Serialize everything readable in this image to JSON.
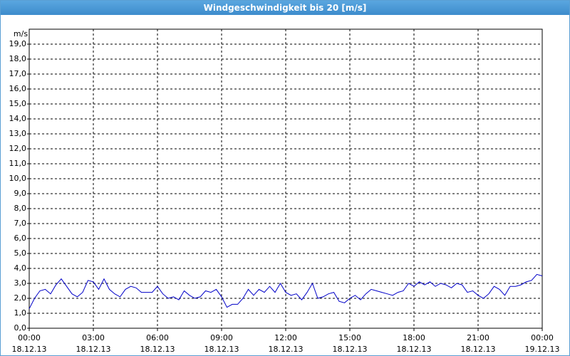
{
  "chart_data": {
    "type": "line",
    "title": "Windgeschwindigkeit bis 20 [m/s]",
    "y_label": "m/s",
    "x": [
      0,
      0.25,
      0.5,
      0.75,
      1,
      1.25,
      1.5,
      1.75,
      2,
      2.25,
      2.5,
      2.75,
      3,
      3.25,
      3.5,
      3.75,
      4,
      4.25,
      4.5,
      4.75,
      5,
      5.25,
      5.5,
      5.75,
      6,
      6.25,
      6.5,
      6.75,
      7,
      7.25,
      7.5,
      7.75,
      8,
      8.25,
      8.5,
      8.75,
      9,
      9.25,
      9.5,
      9.75,
      10,
      10.25,
      10.5,
      10.75,
      11,
      11.25,
      11.5,
      11.75,
      12,
      12.25,
      12.5,
      12.75,
      13,
      13.25,
      13.5,
      13.75,
      14,
      14.25,
      14.5,
      14.75,
      15,
      15.25,
      15.5,
      15.75,
      16,
      16.25,
      16.5,
      16.75,
      17,
      17.25,
      17.5,
      17.75,
      18,
      18.25,
      18.5,
      18.75,
      19,
      19.25,
      19.5,
      19.75,
      20,
      20.25,
      20.5,
      20.75,
      21,
      21.25,
      21.5,
      21.75,
      22,
      22.25,
      22.5,
      22.75,
      23,
      23.25,
      23.5,
      23.75,
      24
    ],
    "series": [
      {
        "name": "m/s",
        "color": "#0000c8",
        "values": [
          1.3,
          2.0,
          2.5,
          2.6,
          2.3,
          2.9,
          3.3,
          2.8,
          2.3,
          2.1,
          2.4,
          3.2,
          3.1,
          2.6,
          3.3,
          2.6,
          2.3,
          2.1,
          2.6,
          2.8,
          2.7,
          2.4,
          2.4,
          2.4,
          2.8,
          2.3,
          2.0,
          2.1,
          1.9,
          2.5,
          2.2,
          2.0,
          2.1,
          2.5,
          2.4,
          2.6,
          2.1,
          1.4,
          1.6,
          1.6,
          2.0,
          2.6,
          2.2,
          2.6,
          2.4,
          2.8,
          2.4,
          3.0,
          2.4,
          2.2,
          2.3,
          1.9,
          2.4,
          3.0,
          2.0,
          2.1,
          2.3,
          2.4,
          1.8,
          1.7,
          2.0,
          2.2,
          1.9,
          2.3,
          2.6,
          2.5,
          2.4,
          2.3,
          2.2,
          2.4,
          2.5,
          3.0,
          2.8,
          3.1,
          2.9,
          3.1,
          2.8,
          3.0,
          2.9,
          2.7,
          3.0,
          2.9,
          2.4,
          2.5,
          2.2,
          2.0,
          2.3,
          2.8,
          2.6,
          2.2,
          2.8,
          2.8,
          2.9,
          3.1,
          3.2,
          3.6,
          3.5
        ]
      }
    ],
    "xlim": [
      0,
      24
    ],
    "xticks": [
      {
        "value": 0,
        "label": "00:00\n18.12.13"
      },
      {
        "value": 3,
        "label": "03:00\n18.12.13"
      },
      {
        "value": 6,
        "label": "06:00\n18.12.13"
      },
      {
        "value": 9,
        "label": "09:00\n18.12.13"
      },
      {
        "value": 12,
        "label": "12:00\n18.12.13"
      },
      {
        "value": 15,
        "label": "15:00\n18.12.13"
      },
      {
        "value": 18,
        "label": "18:00\n18.12.13"
      },
      {
        "value": 21,
        "label": "21:00\n18.12.13"
      },
      {
        "value": 24,
        "label": "00:00\n19.12.13"
      }
    ],
    "ylim": [
      0,
      20
    ],
    "yticks": [
      {
        "value": 0,
        "label": "0,0"
      },
      {
        "value": 1,
        "label": "1,0"
      },
      {
        "value": 2,
        "label": "2,0"
      },
      {
        "value": 3,
        "label": "3,0"
      },
      {
        "value": 4,
        "label": "4,0"
      },
      {
        "value": 5,
        "label": "5,0"
      },
      {
        "value": 6,
        "label": "6,0"
      },
      {
        "value": 7,
        "label": "7,0"
      },
      {
        "value": 8,
        "label": "8,0"
      },
      {
        "value": 9,
        "label": "9,0"
      },
      {
        "value": 10,
        "label": "10,0"
      },
      {
        "value": 11,
        "label": "11,0"
      },
      {
        "value": 12,
        "label": "12,0"
      },
      {
        "value": 13,
        "label": "13,0"
      },
      {
        "value": 14,
        "label": "14,0"
      },
      {
        "value": 15,
        "label": "15,0"
      },
      {
        "value": 16,
        "label": "16,0"
      },
      {
        "value": 17,
        "label": "17,0"
      },
      {
        "value": 18,
        "label": "18,0"
      },
      {
        "value": 19,
        "label": "19,0"
      }
    ],
    "grid": true
  }
}
